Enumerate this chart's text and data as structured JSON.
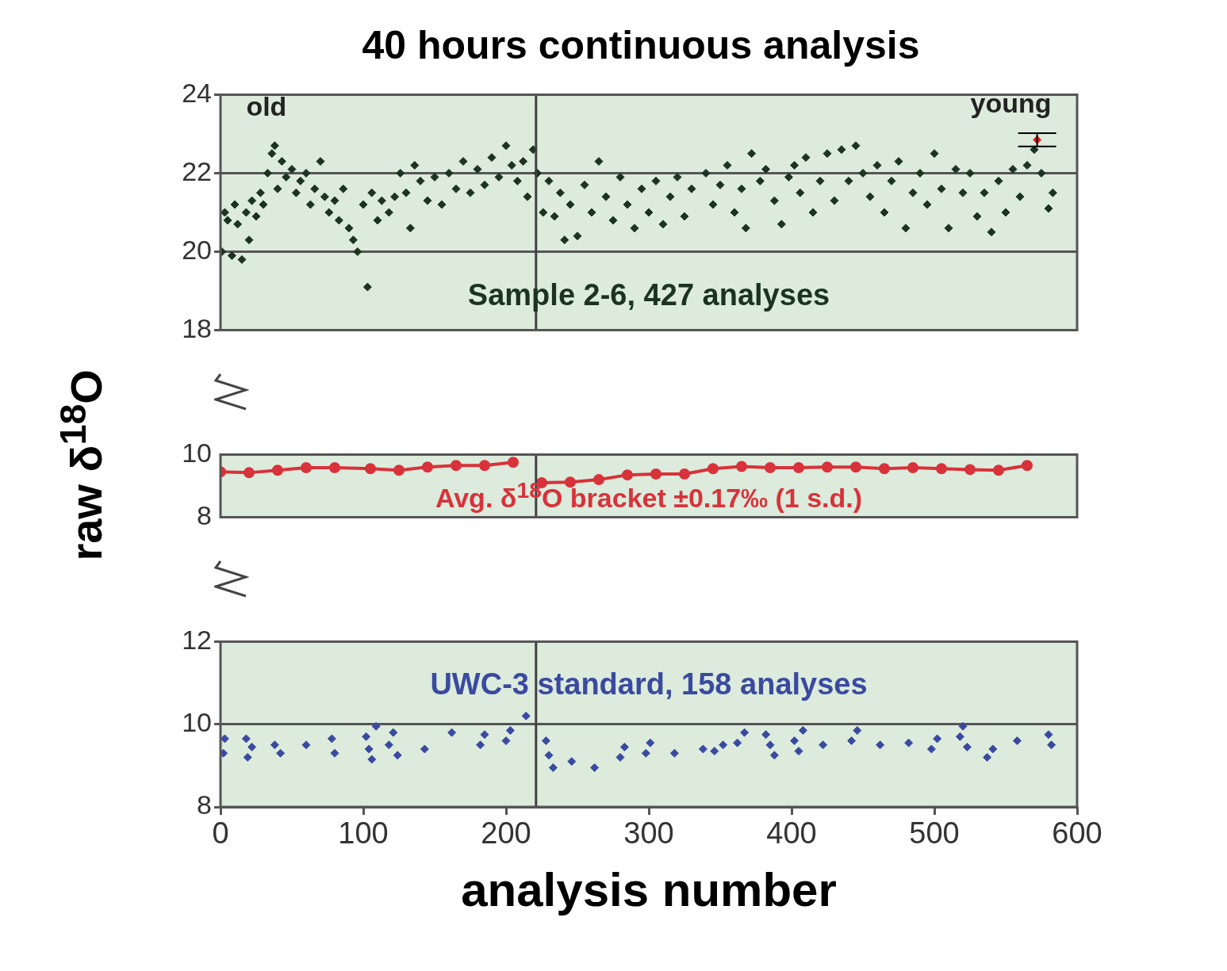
{
  "chart_data": [
    {
      "type": "scatter",
      "title": "40 hours continuous analysis",
      "ylabel": "raw δ$^{18}$O",
      "annotations": [
        "old",
        "young",
        "Sample 2-6, 427 analyses"
      ],
      "xlim": [
        0,
        600
      ],
      "ylim": [
        18,
        24
      ],
      "yticks": [
        18,
        20,
        22,
        24
      ],
      "grid": "y",
      "legend": false,
      "tick_labels": "y",
      "marker": "diamond",
      "ref_lines": [
        {
          "axis": "x",
          "value": 221,
          "color": "#404040"
        }
      ],
      "series": [
        {
          "color": "#1c3320",
          "x": [
            1,
            3,
            5,
            8,
            10,
            12,
            15,
            18,
            20,
            22,
            25,
            28,
            30,
            33,
            36,
            38,
            40,
            43,
            46,
            50,
            53,
            56,
            60,
            63,
            66,
            70,
            73,
            76,
            80,
            83,
            86,
            90,
            93,
            96,
            100,
            103,
            106,
            110,
            113,
            118,
            122,
            126,
            130,
            133,
            136,
            140,
            145,
            150,
            155,
            160,
            165,
            170,
            175,
            180,
            185,
            190,
            195,
            200,
            204,
            208,
            212,
            215,
            219,
            222,
            226,
            230,
            234,
            238,
            241,
            245,
            250,
            255,
            260,
            265,
            270,
            275,
            280,
            285,
            290,
            295,
            300,
            305,
            310,
            315,
            320,
            325,
            330,
            340,
            345,
            350,
            355,
            360,
            365,
            368,
            372,
            378,
            382,
            388,
            393,
            398,
            402,
            406,
            410,
            415,
            420,
            425,
            430,
            435,
            440,
            445,
            450,
            455,
            460,
            465,
            470,
            475,
            480,
            485,
            490,
            495,
            500,
            505,
            510,
            515,
            520,
            525,
            530,
            535,
            540,
            545,
            550,
            555,
            560,
            565,
            570,
            575,
            580,
            583
          ],
          "values": [
            20.0,
            21.0,
            20.8,
            19.9,
            21.2,
            20.7,
            19.8,
            21.0,
            20.3,
            21.3,
            20.9,
            21.5,
            21.2,
            22.0,
            22.5,
            22.7,
            21.6,
            22.3,
            21.9,
            22.1,
            21.5,
            21.8,
            22.0,
            21.2,
            21.6,
            22.3,
            21.4,
            21.0,
            21.3,
            20.8,
            21.6,
            20.6,
            20.3,
            20.0,
            21.2,
            19.1,
            21.5,
            20.8,
            21.3,
            21.0,
            21.4,
            22.0,
            21.5,
            20.6,
            22.2,
            21.8,
            21.3,
            21.9,
            21.2,
            22.0,
            21.6,
            22.3,
            21.5,
            22.1,
            21.7,
            22.4,
            21.9,
            22.7,
            22.2,
            21.8,
            22.3,
            21.4,
            22.6,
            22.0,
            21.0,
            21.8,
            20.9,
            21.5,
            20.3,
            21.2,
            20.4,
            21.7,
            21.0,
            22.3,
            21.4,
            20.8,
            21.9,
            21.2,
            20.6,
            21.6,
            21.0,
            21.8,
            20.7,
            21.4,
            21.9,
            20.9,
            21.6,
            22.0,
            21.2,
            21.7,
            22.2,
            21.0,
            21.6,
            20.6,
            22.5,
            21.8,
            22.1,
            21.3,
            20.7,
            21.9,
            22.2,
            21.5,
            22.4,
            21.0,
            21.8,
            22.5,
            21.3,
            22.6,
            21.8,
            22.7,
            22.0,
            21.4,
            22.2,
            21.0,
            21.8,
            22.3,
            20.6,
            21.5,
            22.0,
            21.2,
            22.5,
            21.6,
            20.6,
            22.1,
            21.5,
            22.0,
            20.9,
            21.5,
            20.5,
            21.8,
            21.0,
            22.1,
            21.4,
            22.2,
            22.6,
            22.0,
            21.1,
            21.5
          ]
        },
        {
          "color": "#e02020",
          "x": [
            572
          ],
          "values": [
            22.85
          ],
          "errors": [
            0.17
          ]
        }
      ]
    },
    {
      "type": "line",
      "annotations": [
        "Avg. δ$^{18}$O bracket  ±0.17‰ (1 s.d.)"
      ],
      "xlim": [
        0,
        600
      ],
      "ylim": [
        8,
        10
      ],
      "yticks": [
        8,
        10
      ],
      "legend": false,
      "tick_labels": "y",
      "marker": "circle",
      "line_style": "solid",
      "ref_lines": [
        {
          "axis": "x",
          "value": 221,
          "color": "#404040"
        }
      ],
      "series": [
        {
          "color": "#d8323a",
          "x": [
            0,
            20,
            40,
            60,
            80,
            105,
            125,
            145,
            165,
            185,
            205,
            221,
            225,
            245,
            265,
            285,
            305,
            325,
            345,
            365,
            385,
            405,
            425,
            445,
            465,
            485,
            505,
            525,
            545,
            565
          ],
          "values": [
            9.45,
            9.42,
            9.5,
            9.58,
            9.58,
            9.55,
            9.5,
            9.6,
            9.65,
            9.65,
            9.75,
            null,
            9.1,
            9.12,
            9.2,
            9.35,
            9.38,
            9.38,
            9.55,
            9.62,
            9.58,
            9.58,
            9.6,
            9.6,
            9.55,
            9.58,
            9.55,
            9.52,
            9.5,
            9.65
          ]
        }
      ]
    },
    {
      "type": "scatter",
      "xlabel": "analysis number",
      "annotations": [
        "UWC-3 standard, 158 analyses"
      ],
      "xlim": [
        0,
        600
      ],
      "ylim": [
        8,
        12
      ],
      "xticks": [
        0,
        100,
        200,
        300,
        400,
        500,
        600
      ],
      "yticks": [
        8,
        10,
        12
      ],
      "grid": "y",
      "legend": false,
      "marker": "diamond",
      "ref_lines": [
        {
          "axis": "x",
          "value": 221,
          "color": "#404040"
        }
      ],
      "series": [
        {
          "color": "#3a4aa0",
          "x": [
            2,
            3,
            18,
            19,
            22,
            38,
            42,
            60,
            78,
            80,
            102,
            104,
            106,
            109,
            118,
            121,
            124,
            143,
            162,
            182,
            185,
            200,
            203,
            214,
            228,
            230,
            233,
            246,
            262,
            280,
            283,
            298,
            301,
            318,
            338,
            346,
            352,
            362,
            367,
            382,
            385,
            388,
            402,
            405,
            408,
            422,
            442,
            446,
            462,
            482,
            498,
            502,
            518,
            520,
            523,
            537,
            541,
            558,
            580,
            582
          ],
          "values": [
            9.3,
            9.65,
            9.65,
            9.2,
            9.45,
            9.5,
            9.3,
            9.5,
            9.65,
            9.3,
            9.7,
            9.4,
            9.15,
            9.95,
            9.5,
            9.8,
            9.25,
            9.4,
            9.8,
            9.5,
            9.75,
            9.6,
            9.85,
            10.2,
            9.6,
            9.25,
            8.95,
            9.1,
            8.95,
            9.2,
            9.45,
            9.3,
            9.55,
            9.3,
            9.4,
            9.35,
            9.5,
            9.55,
            9.8,
            9.75,
            9.5,
            9.25,
            9.6,
            9.35,
            9.85,
            9.5,
            9.6,
            9.85,
            9.5,
            9.55,
            9.4,
            9.65,
            9.7,
            9.95,
            9.45,
            9.2,
            9.4,
            9.6,
            9.75,
            9.5
          ]
        }
      ]
    }
  ]
}
